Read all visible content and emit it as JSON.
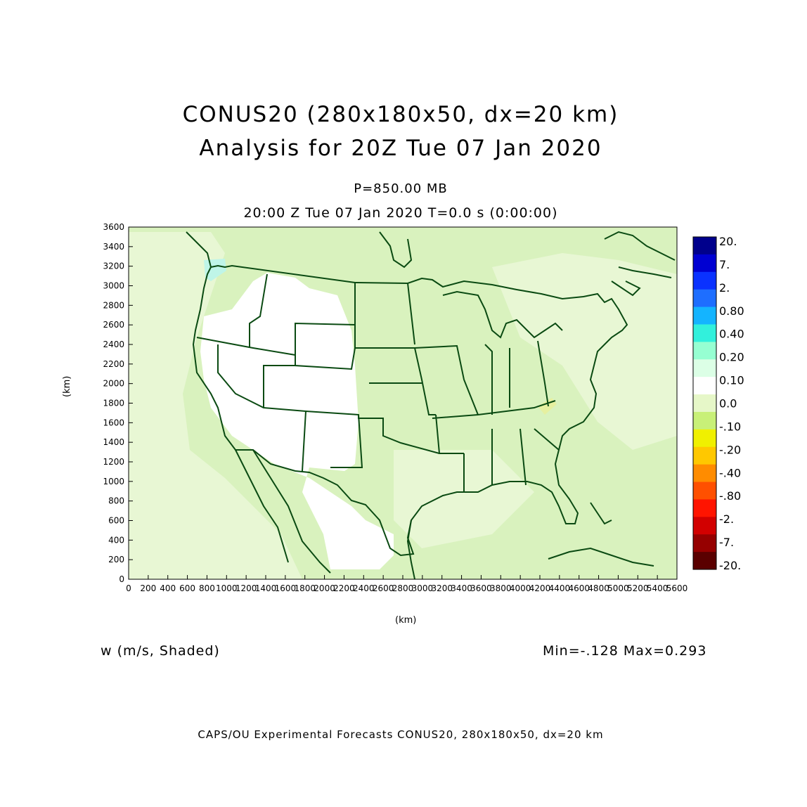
{
  "title": {
    "line1": "CONUS20 (280x180x50, dx=20 km)",
    "line2": "Analysis for 20Z Tue 07 Jan 2020"
  },
  "level": "P=850.00 MB",
  "valid_time": "20:00 Z Tue 07 Jan 2020    T=0.0 s (0:00:00)",
  "field_label": "w (m/s, Shaded)",
  "min_max": "Min=-.128  Max=0.293",
  "footer": "CAPS/OU Experimental Forecasts   CONUS20, 280x180x50, dx=20 km",
  "axes": {
    "xlabel": "(km)",
    "ylabel": "(km)",
    "x_range": [
      0,
      5600
    ],
    "y_range": [
      0,
      3600
    ],
    "x_ticks": [
      "0",
      "200",
      "400",
      "600",
      "800",
      "1000",
      "1200",
      "1400",
      "1600",
      "1800",
      "2000",
      "2200",
      "2400",
      "2600",
      "2800",
      "3000",
      "3200",
      "3400",
      "3600",
      "3800",
      "4000",
      "4200",
      "4400",
      "4600",
      "4800",
      "5000",
      "5200",
      "5400",
      "5600"
    ],
    "y_ticks": [
      "0",
      "200",
      "400",
      "600",
      "800",
      "1000",
      "1200",
      "1400",
      "1600",
      "1800",
      "2000",
      "2200",
      "2400",
      "2600",
      "2800",
      "3000",
      "3200",
      "3400",
      "3600"
    ]
  },
  "colors": {
    "background": "#d9f2be",
    "land_light": "#e8f7d4",
    "mountains": "#ffffff",
    "boundary": "#0a4a12"
  },
  "colorbar": [
    {
      "label": "20.",
      "color": "#00008c"
    },
    {
      "label": "7.",
      "color": "#0000d2"
    },
    {
      "label": "2.",
      "color": "#0a32ff"
    },
    {
      "label": "0.80",
      "color": "#1e6eff"
    },
    {
      "label": "0.40",
      "color": "#14b4ff"
    },
    {
      "label": "0.20",
      "color": "#32f0dc"
    },
    {
      "label": "0.10",
      "color": "#96ffd2"
    },
    {
      "label": "0.0",
      "color": "#dcffe6"
    },
    {
      "label": "-.10",
      "color": "#ffffff"
    },
    {
      "label": "-.20",
      "color": "#e6f7c8"
    },
    {
      "label": "-.40",
      "color": "#c8f078"
    },
    {
      "label": "-.80",
      "color": "#f0f000"
    },
    {
      "label": "-2.",
      "color": "#ffc800"
    },
    {
      "label": "-7.",
      "color": "#ff8c00"
    },
    {
      "label": "-20.",
      "color": "#ff5000"
    },
    {
      "label": "",
      "color": "#ff1400"
    },
    {
      "label": "",
      "color": "#d20000"
    },
    {
      "label": "",
      "color": "#960000"
    },
    {
      "label": "",
      "color": "#5a0000"
    }
  ]
}
